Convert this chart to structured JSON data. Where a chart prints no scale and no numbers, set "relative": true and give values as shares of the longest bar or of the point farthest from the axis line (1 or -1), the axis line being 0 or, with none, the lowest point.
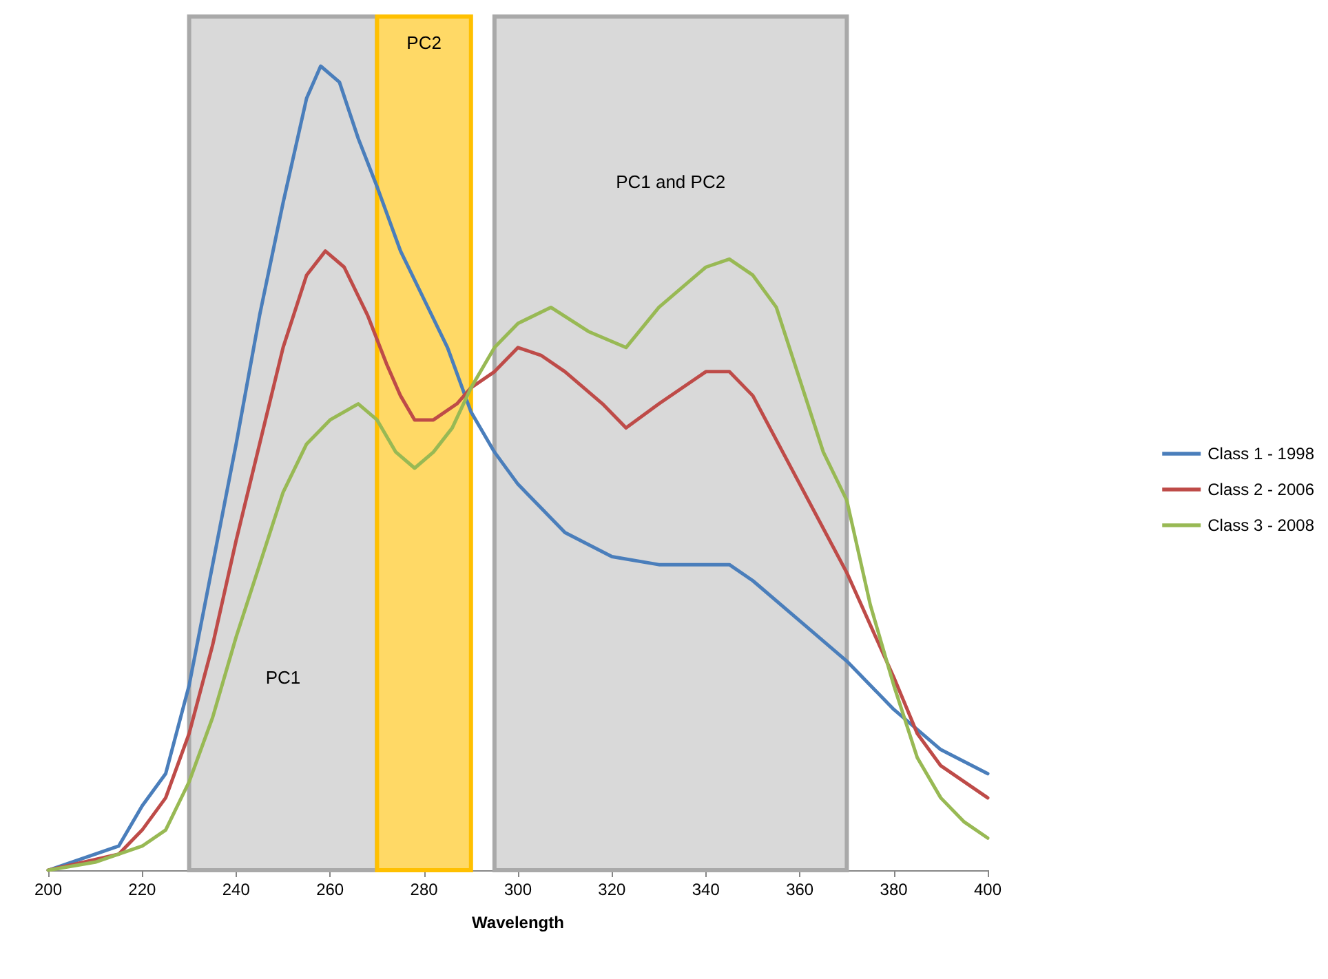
{
  "chart_data": {
    "type": "line",
    "relative": true,
    "xlabel": "Wavelength",
    "xlim": [
      200,
      400
    ],
    "xticks": [
      200,
      220,
      240,
      260,
      280,
      300,
      320,
      340,
      360,
      380,
      400
    ],
    "legend": "right",
    "grid": false,
    "marker": "none",
    "bands": [
      {
        "axis": "x",
        "from": 230,
        "to": 270,
        "label": "PC1",
        "color": "#d9d9d9"
      },
      {
        "axis": "x",
        "from": 270,
        "to": 290,
        "label": "PC2",
        "color": "#ffd966"
      },
      {
        "axis": "x",
        "from": 295,
        "to": 370,
        "label": "PC1 and PC2",
        "color": "#d9d9d9"
      }
    ],
    "series": [
      {
        "name": "Class 1 - 1998",
        "color": "#4a7ebb",
        "x": [
          200,
          210,
          215,
          220,
          225,
          230,
          235,
          240,
          245,
          250,
          255,
          258,
          262,
          266,
          270,
          275,
          280,
          285,
          290,
          295,
          300,
          310,
          320,
          330,
          340,
          345,
          350,
          360,
          370,
          380,
          390,
          400
        ],
        "values": [
          0,
          0.02,
          0.03,
          0.08,
          0.12,
          0.23,
          0.38,
          0.53,
          0.69,
          0.83,
          0.96,
          1,
          0.98,
          0.91,
          0.85,
          0.77,
          0.71,
          0.65,
          0.57,
          0.52,
          0.48,
          0.42,
          0.39,
          0.38,
          0.38,
          0.38,
          0.36,
          0.31,
          0.26,
          0.2,
          0.15,
          0.12
        ]
      },
      {
        "name": "Class 2 - 2006",
        "color": "#be4b48",
        "x": [
          200,
          215,
          220,
          225,
          230,
          235,
          240,
          245,
          250,
          255,
          259,
          263,
          268,
          272,
          275,
          278,
          282,
          287,
          290,
          295,
          300,
          305,
          310,
          318,
          323,
          330,
          340,
          345,
          350,
          360,
          370,
          380,
          385,
          390,
          400
        ],
        "values": [
          0,
          0.02,
          0.05,
          0.09,
          0.17,
          0.28,
          0.41,
          0.53,
          0.65,
          0.74,
          0.77,
          0.75,
          0.69,
          0.63,
          0.59,
          0.56,
          0.56,
          0.58,
          0.6,
          0.62,
          0.65,
          0.64,
          0.62,
          0.58,
          0.55,
          0.58,
          0.62,
          0.62,
          0.59,
          0.48,
          0.37,
          0.24,
          0.17,
          0.13,
          0.09
        ]
      },
      {
        "name": "Class 3 - 2008",
        "color": "#98b954",
        "x": [
          200,
          210,
          220,
          225,
          230,
          235,
          240,
          245,
          250,
          255,
          260,
          266,
          270,
          274,
          278,
          282,
          286,
          290,
          295,
          300,
          307,
          315,
          323,
          330,
          340,
          345,
          350,
          355,
          360,
          365,
          370,
          375,
          380,
          385,
          390,
          395,
          400
        ],
        "values": [
          0,
          0.01,
          0.03,
          0.05,
          0.11,
          0.19,
          0.29,
          0.38,
          0.47,
          0.53,
          0.56,
          0.58,
          0.56,
          0.52,
          0.5,
          0.52,
          0.55,
          0.6,
          0.65,
          0.68,
          0.7,
          0.67,
          0.65,
          0.7,
          0.75,
          0.76,
          0.74,
          0.7,
          0.61,
          0.52,
          0.46,
          0.33,
          0.23,
          0.14,
          0.09,
          0.06,
          0.04
        ]
      }
    ]
  }
}
